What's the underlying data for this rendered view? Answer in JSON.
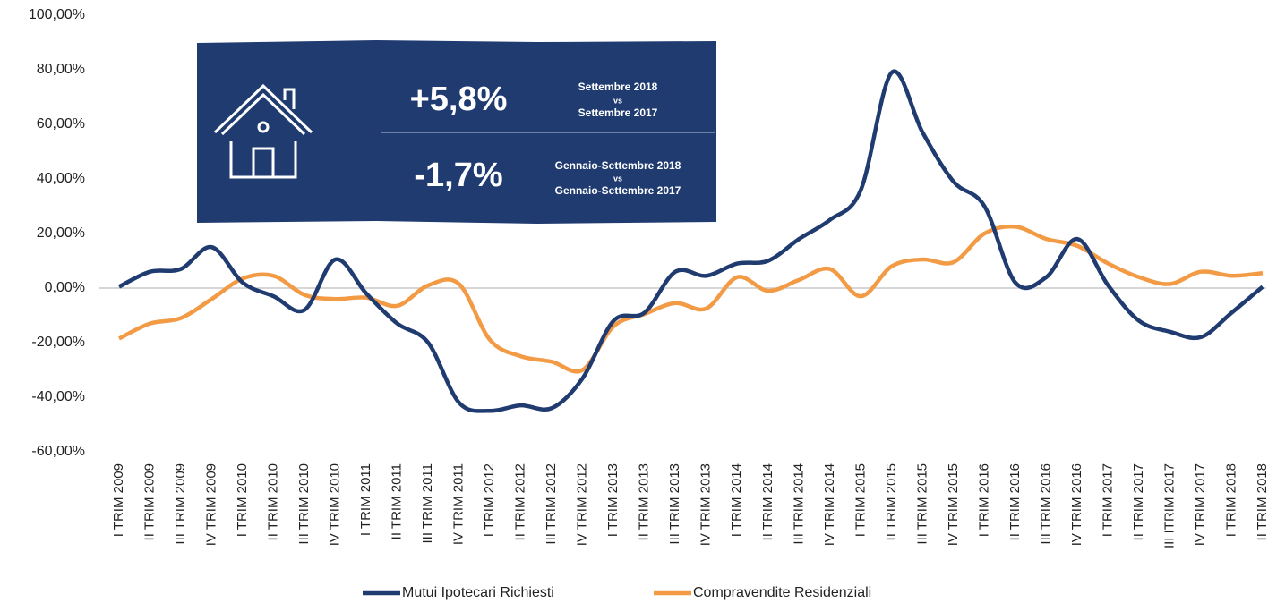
{
  "chart_data": {
    "type": "line",
    "categories": [
      "I TRIM 2009",
      "II TRIM 2009",
      "III TRIM 2009",
      "IV TRIM 2009",
      "I TRIM 2010",
      "II TRIM 2010",
      "III TRIM 2010",
      "IV TRIM 2010",
      "I TRIM 2011",
      "II TRIM 2011",
      "III TRIM 2011",
      "IV TRIM 2011",
      "I TRIM 2012",
      "II TRIM 2012",
      "III TRIM 2012",
      "IV TRIM 2012",
      "I TRIM 2013",
      "II TRIM 2013",
      "III TRIM 2013",
      "IV TRIM 2013",
      "I TRIM 2014",
      "II TRIM 2014",
      "III TRIM 2014",
      "IV TRIM 2014",
      "I TRIM 2015",
      "II TRIM 2015",
      "III TRIM 2015",
      "IV TRIM 2015",
      "I TRIM 2016",
      "II TRIM 2016",
      "III TRIM 2016",
      "IV TRIM 2016",
      "I TRIM 2017",
      "II TRIM 2017",
      "III ITRIM 2017",
      "IV TRIM 2017",
      "I TRIM 2018",
      "II TRIM 2018"
    ],
    "series": [
      {
        "name": "Mutui Ipotecari Richiesti",
        "color": "#1f3b70",
        "values": [
          0.5,
          6,
          7,
          15,
          2,
          -3,
          -8,
          10.5,
          -2,
          -13,
          -20,
          -42,
          -45,
          -43,
          -44,
          -33,
          -12,
          -9,
          6,
          4.5,
          9,
          10,
          18,
          25,
          36,
          79,
          57,
          39,
          30,
          2,
          4,
          18,
          1,
          -12,
          -16,
          -18,
          -9,
          0.5
        ]
      },
      {
        "name": "Compravendite Residenziali",
        "color": "#f39a45",
        "values": [
          -18.5,
          -13,
          -11,
          -4,
          3.5,
          4.5,
          -2.5,
          -4,
          -3.5,
          -6.5,
          1,
          1.5,
          -19,
          -25,
          -27,
          -30,
          -14,
          -9.5,
          -5.5,
          -7.5,
          4,
          -1,
          3,
          7,
          -3,
          8,
          10.5,
          9.5,
          20,
          22.5,
          18,
          15.5,
          9,
          4,
          1.5,
          6,
          4.5,
          5.5
        ]
      }
    ],
    "ylim": [
      -60,
      100
    ],
    "yticks": [
      {
        "value": -60,
        "label": "-60,00%"
      },
      {
        "value": -40,
        "label": "-40,00%"
      },
      {
        "value": -20,
        "label": "-20,00%"
      },
      {
        "value": 0,
        "label": "0,00%"
      },
      {
        "value": 20,
        "label": "20,00%"
      },
      {
        "value": 40,
        "label": "40,00%"
      },
      {
        "value": 60,
        "label": "60,00%"
      },
      {
        "value": 80,
        "label": "80,00%"
      },
      {
        "value": 100,
        "label": "100,00%"
      }
    ],
    "legend": "bottom",
    "callouts": [
      {
        "value": "+5,8%",
        "period": "Settembre 2018",
        "vs": "vs",
        "compare": "Settembre 2017"
      },
      {
        "value": "-1,7%",
        "period": "Gennaio-Settembre 2018",
        "vs": "vs",
        "compare": "Gennaio-Settembre 2017"
      }
    ]
  }
}
